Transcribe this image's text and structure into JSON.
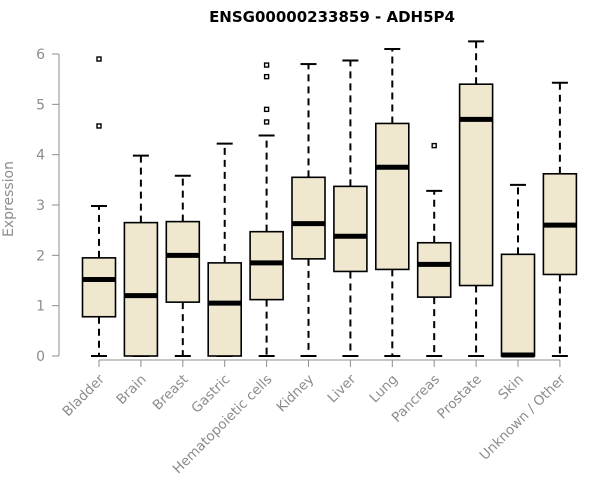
{
  "chart_data": {
    "type": "boxplot",
    "title": "ENSG00000233859 - ADH5P4",
    "xlabel": "",
    "ylabel": "Expression",
    "ylim": [
      0,
      6.2
    ],
    "yticks": [
      0,
      1,
      2,
      3,
      4,
      5,
      6
    ],
    "grid": false,
    "categories": [
      "Bladder",
      "Brain",
      "Breast",
      "Gastric",
      "Hematopoietic cells",
      "Kidney",
      "Liver",
      "Lung",
      "Pancreas",
      "Prostate",
      "Skin",
      "Unknown / Other"
    ],
    "boxes": [
      {
        "min": 0,
        "q1": 0.78,
        "median": 1.52,
        "q3": 1.95,
        "max": 2.98,
        "outliers": [
          4.57,
          5.9
        ]
      },
      {
        "min": 0,
        "q1": 0,
        "median": 1.2,
        "q3": 2.65,
        "max": 3.98,
        "outliers": []
      },
      {
        "min": 0,
        "q1": 1.07,
        "median": 2.0,
        "q3": 2.67,
        "max": 3.58,
        "outliers": []
      },
      {
        "min": 0,
        "q1": 0,
        "median": 1.05,
        "q3": 1.85,
        "max": 4.22,
        "outliers": []
      },
      {
        "min": 0,
        "q1": 1.12,
        "median": 1.85,
        "q3": 2.47,
        "max": 4.38,
        "outliers": [
          4.65,
          4.9,
          5.55,
          5.78
        ]
      },
      {
        "min": 0,
        "q1": 1.93,
        "median": 2.63,
        "q3": 3.55,
        "max": 5.8,
        "outliers": []
      },
      {
        "min": 0,
        "q1": 1.68,
        "median": 2.38,
        "q3": 3.37,
        "max": 5.87,
        "outliers": []
      },
      {
        "min": 0,
        "q1": 1.72,
        "median": 3.75,
        "q3": 4.62,
        "max": 6.1,
        "outliers": []
      },
      {
        "min": 0,
        "q1": 1.17,
        "median": 1.82,
        "q3": 2.25,
        "max": 3.28,
        "outliers": [
          4.18
        ]
      },
      {
        "min": 0,
        "q1": 1.4,
        "median": 4.7,
        "q3": 5.4,
        "max": 6.25,
        "outliers": []
      },
      {
        "min": 0,
        "q1": 0,
        "median": 0.02,
        "q3": 2.02,
        "max": 3.4,
        "outliers": []
      },
      {
        "min": 0,
        "q1": 1.62,
        "median": 2.6,
        "q3": 3.62,
        "max": 5.43,
        "outliers": []
      }
    ],
    "colors": {
      "box_fill": "#efe8cf",
      "stroke": "#000000",
      "axis": "#8c8c8c",
      "title": "#000000"
    }
  }
}
